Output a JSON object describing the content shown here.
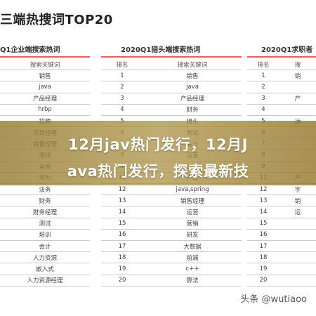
{
  "title": "三端热搜词TOP20",
  "columns": [
    {
      "title": "Q1企业端搜索热词",
      "headers": [
        "搜索关键词"
      ]
    },
    {
      "title": "2020Q1猎头端搜索热词",
      "headers": [
        "排名",
        "搜索关键词"
      ]
    },
    {
      "title": "2020Q1求职者",
      "headers": [
        "排名",
        "搜"
      ]
    }
  ],
  "table1_rows": [
    "销售",
    "java",
    "产品经理",
    "hrbp",
    "招聘",
    "项目经理",
    "销售经理",
    "测试",
    "运营",
    "华为",
    "法务",
    "财务",
    "财务经理",
    "测试",
    "培训",
    "会计",
    "人力资源",
    "嵌入式",
    "人力资源经理"
  ],
  "table2_rows": [
    [
      "1",
      "销售"
    ],
    [
      "2",
      "java"
    ],
    [
      "3",
      "产品经理"
    ],
    [
      "4",
      "财务"
    ],
    [
      "5",
      "猎头"
    ],
    [
      "6",
      "测试"
    ],
    [
      "7",
      "会计"
    ],
    [
      "8",
      "运营"
    ],
    [
      "9",
      "嵌入式"
    ],
    [
      "11",
      "产品"
    ],
    [
      "12",
      "java,spring"
    ],
    [
      "13",
      "销售经理"
    ],
    [
      "14",
      "运营"
    ],
    [
      "15",
      "营销"
    ],
    [
      "16",
      "研发"
    ],
    [
      "17",
      "大数据"
    ],
    [
      "18",
      "前端"
    ],
    [
      "19",
      "c++"
    ],
    [
      "20",
      "算法"
    ]
  ],
  "table3_rows": [
    [
      "1",
      "销"
    ],
    [
      "2",
      ""
    ],
    [
      "3",
      "产"
    ],
    [
      "4",
      ""
    ],
    [
      "5",
      "运"
    ],
    [
      "6",
      ""
    ],
    [
      "7",
      ""
    ],
    [
      "8",
      ""
    ],
    [
      "9",
      ""
    ],
    [
      "11",
      "产"
    ],
    [
      "12",
      "字"
    ],
    [
      "13",
      "销"
    ],
    [
      "14",
      "运"
    ],
    [
      "15",
      ""
    ],
    [
      "16",
      ""
    ],
    [
      "17",
      ""
    ],
    [
      "18",
      ""
    ],
    [
      "19",
      ""
    ],
    [
      "20",
      ""
    ]
  ],
  "banner": {
    "line1": "12月jav热门发行，12月J",
    "line2": "ava热门发行，探索最新技"
  },
  "watermark": "头条 @wutiaoo",
  "colors": {
    "accent": "#e06060",
    "banner": "#a88f45"
  }
}
